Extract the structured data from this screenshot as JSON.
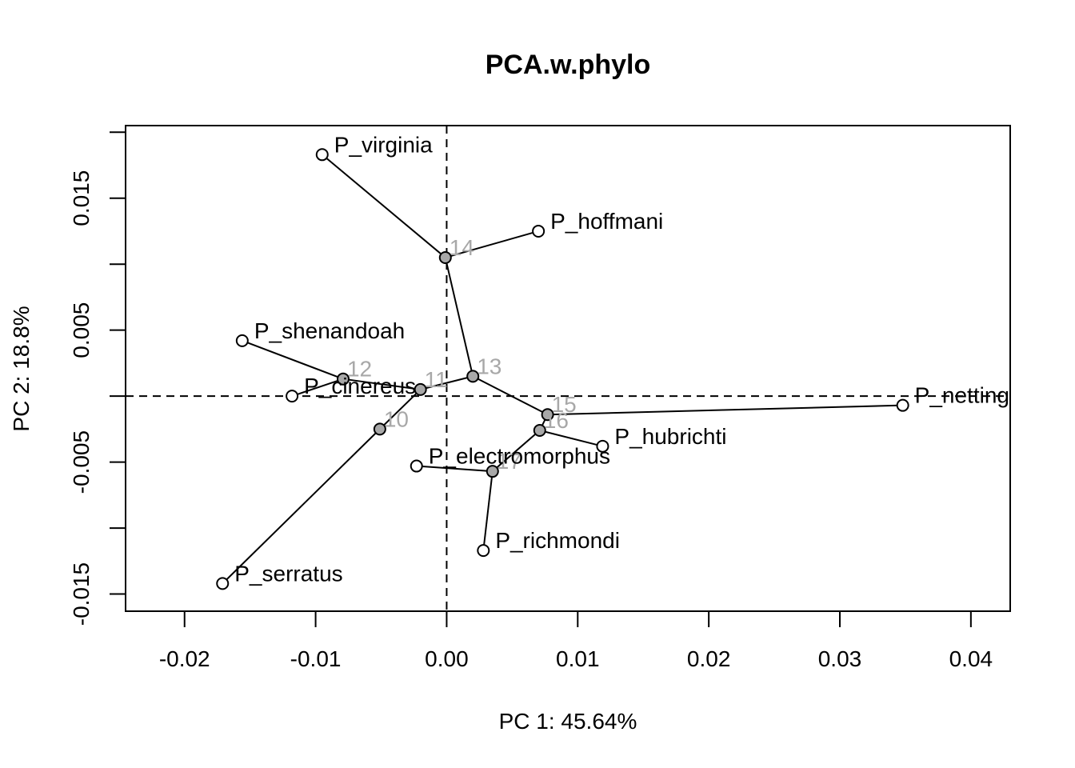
{
  "chart_data": {
    "type": "scatter",
    "title": "PCA.w.phylo",
    "xlabel": "PC 1: 45.64%",
    "ylabel": "PC 2: 18.8%",
    "xlim": [
      -0.0245,
      0.043
    ],
    "ylim": [
      -0.0163,
      0.0205
    ],
    "x_ticks": [
      -0.02,
      -0.01,
      0.0,
      0.01,
      0.02,
      0.03,
      0.04
    ],
    "x_tick_labels": [
      "-0.02",
      "-0.01",
      "0.00",
      "0.01",
      "0.02",
      "0.03",
      "0.04"
    ],
    "y_ticks": [
      -0.015,
      -0.01,
      -0.005,
      0.0,
      0.005,
      0.01,
      0.015,
      0.02
    ],
    "y_tick_labels": [
      "-0.015",
      "",
      "-0.005",
      "",
      "0.005",
      "",
      "0.015",
      ""
    ],
    "reference_lines": {
      "x": 0.0,
      "y": 0.0,
      "style": "dashed"
    },
    "tips": [
      {
        "name": "P_virginia",
        "x": -0.0095,
        "y": 0.0183
      },
      {
        "name": "P_hoffmani",
        "x": 0.007,
        "y": 0.0125
      },
      {
        "name": "P_shenandoah",
        "x": -0.0156,
        "y": 0.0042
      },
      {
        "name": "P_cinereus",
        "x": -0.0118,
        "y": 0.0
      },
      {
        "name": "P_nettingi",
        "x": 0.0348,
        "y": -0.0007
      },
      {
        "name": "P_hubrichti",
        "x": 0.0119,
        "y": -0.0038
      },
      {
        "name": "P_electromorphus",
        "x": -0.0023,
        "y": -0.0053
      },
      {
        "name": "P_richmondi",
        "x": 0.0028,
        "y": -0.0117
      },
      {
        "name": "P_serratus",
        "x": -0.0171,
        "y": -0.0142
      }
    ],
    "nodes": [
      {
        "name": "10",
        "x": -0.0051,
        "y": -0.0025
      },
      {
        "name": "11",
        "x": -0.002,
        "y": 0.0005
      },
      {
        "name": "12",
        "x": -0.0079,
        "y": 0.0013
      },
      {
        "name": "13",
        "x": 0.002,
        "y": 0.0015
      },
      {
        "name": "14",
        "x": -0.0001,
        "y": 0.0105
      },
      {
        "name": "15",
        "x": 0.0077,
        "y": -0.0014
      },
      {
        "name": "16",
        "x": 0.0071,
        "y": -0.0026
      },
      {
        "name": "17",
        "x": 0.0035,
        "y": -0.0057
      }
    ],
    "edges": [
      [
        "10",
        "P_serratus"
      ],
      [
        "10",
        "11"
      ],
      [
        "11",
        "12"
      ],
      [
        "12",
        "P_shenandoah"
      ],
      [
        "12",
        "P_cinereus"
      ],
      [
        "11",
        "13"
      ],
      [
        "13",
        "14"
      ],
      [
        "14",
        "P_virginia"
      ],
      [
        "14",
        "P_hoffmani"
      ],
      [
        "13",
        "15"
      ],
      [
        "15",
        "P_nettingi"
      ],
      [
        "15",
        "16"
      ],
      [
        "16",
        "P_hubrichti"
      ],
      [
        "16",
        "17"
      ],
      [
        "17",
        "P_electromorphus"
      ],
      [
        "17",
        "P_richmondi"
      ]
    ],
    "colors": {
      "tip_fill": "#ffffff",
      "node_fill": "#a8a8a8",
      "node_label": "#a8a8a8",
      "line": "#000000"
    }
  }
}
